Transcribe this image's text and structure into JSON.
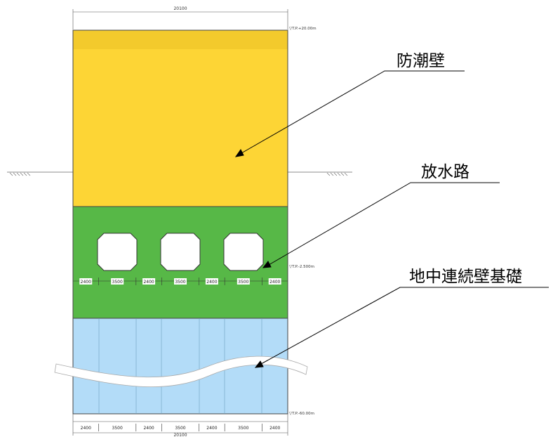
{
  "callouts": {
    "seawall": "防潮壁",
    "discharge_channel": "放水路",
    "diaphragm_wall_foundation": "地中連続壁基礎"
  },
  "dimensions": {
    "overall_width_top": "20100",
    "overall_width_bottom": "20100",
    "segments": [
      "2400",
      "3500",
      "2400",
      "3500",
      "2400",
      "3500",
      "2400"
    ]
  },
  "levels": {
    "top": "▽T.P.+20.00m",
    "middle": "▽T.P.-2.500m",
    "bottom": "▽T.P.-60.00m"
  },
  "colors": {
    "seawall": "#fdd535",
    "seawall_top_band": "#f3ca2c",
    "channel": "#57b847",
    "foundation": "#b3dcf8",
    "outline": "#333333"
  }
}
